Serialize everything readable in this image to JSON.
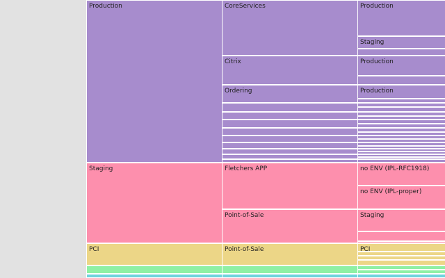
{
  "colors": {
    "purple": "#a78ccd",
    "pink": "#fd8fad",
    "yellow": "#ecd687",
    "green": "#8ff0a4",
    "cyan": "#6fd3dd",
    "separator": "#ffffff",
    "left_panel": "#e2e2e2"
  },
  "chart_data": {
    "type": "icicle",
    "title": "",
    "levels": 3,
    "nodes": [
      {
        "id": "production",
        "level": 0,
        "label": "Production",
        "value": 58.5,
        "color": "purple",
        "children": [
          {
            "id": "coreservices",
            "level": 1,
            "label": "CoreServices",
            "value": 20,
            "children": [
              {
                "id": "cs-production",
                "label": "Production",
                "value": 13
              },
              {
                "id": "cs-staging",
                "label": "Staging",
                "value": 4.5
              },
              {
                "id": "cs-r3",
                "label": "",
                "value": 2.5
              }
            ]
          },
          {
            "id": "citrix",
            "level": 1,
            "label": "Citrix",
            "value": 10.5,
            "children": [
              {
                "id": "cx-production",
                "label": "Production",
                "value": 7.25
              },
              {
                "id": "cx-r2",
                "label": "",
                "value": 3.25
              }
            ]
          },
          {
            "id": "ordering",
            "level": 1,
            "label": "Ordering",
            "value": 6.5,
            "children": [
              {
                "id": "or-production",
                "label": "Production",
                "value": 5
              },
              {
                "id": "or-r2",
                "label": "",
                "value": 1.5
              }
            ]
          },
          {
            "id": "p-r4",
            "level": 1,
            "label": "",
            "value": 3.25,
            "children": [
              {
                "id": "p-r4-a",
                "label": "",
                "value": 1.5
              },
              {
                "id": "p-r4-b",
                "label": "",
                "value": 1.75
              }
            ]
          },
          {
            "id": "p-r5",
            "level": 1,
            "label": "",
            "value": 2.75,
            "children": [
              {
                "id": "p-r5-a",
                "label": "",
                "value": 1.5
              },
              {
                "id": "p-r5-b",
                "label": "",
                "value": 1.25
              }
            ]
          },
          {
            "id": "p-r6",
            "level": 1,
            "label": "",
            "value": 3,
            "children": [
              {
                "id": "p-r6-a",
                "label": "",
                "value": 1.5
              },
              {
                "id": "p-r6-b",
                "label": "",
                "value": 1.5
              }
            ]
          },
          {
            "id": "p-r7",
            "level": 1,
            "label": "",
            "value": 2.75,
            "children": [
              {
                "id": "p-r7-a",
                "label": "",
                "value": 1.5
              },
              {
                "id": "p-r7-b",
                "label": "",
                "value": 1.25
              }
            ]
          },
          {
            "id": "p-r8",
            "level": 1,
            "label": "",
            "value": 2.5,
            "children": [
              {
                "id": "p-r8-a",
                "label": "",
                "value": 1.25
              },
              {
                "id": "p-r8-b",
                "label": "",
                "value": 1.25
              }
            ]
          },
          {
            "id": "p-r9",
            "level": 1,
            "label": "",
            "value": 2.25,
            "children": [
              {
                "id": "p-r9-a",
                "label": "",
                "value": 1.25
              },
              {
                "id": "p-r9-b",
                "label": "",
                "value": 1
              }
            ]
          },
          {
            "id": "p-r10",
            "level": 1,
            "label": "",
            "value": 2,
            "children": [
              {
                "id": "p-r10-a",
                "label": "",
                "value": 1
              },
              {
                "id": "p-r10-b",
                "label": "",
                "value": 1
              }
            ]
          },
          {
            "id": "p-r11",
            "level": 1,
            "label": "",
            "value": 1.75,
            "children": [
              {
                "id": "p-r11-a",
                "label": "",
                "value": 1
              },
              {
                "id": "p-r11-b",
                "label": "",
                "value": 0.75
              }
            ]
          },
          {
            "id": "p-r12",
            "level": 1,
            "label": "",
            "value": 1.25,
            "children": [
              {
                "id": "p-r12-a",
                "label": "",
                "value": 1.25
              }
            ]
          }
        ]
      },
      {
        "id": "staging",
        "level": 0,
        "label": "Staging",
        "value": 29,
        "color": "pink",
        "children": [
          {
            "id": "fletchers",
            "level": 1,
            "label": "Fletchers APP",
            "value": 16.75,
            "children": [
              {
                "id": "fl-noenv-rfc",
                "label": "no ENV (IPL-RFC1918)",
                "value": 8.25
              },
              {
                "id": "fl-noenv-proper",
                "label": "no ENV (IPL-proper)",
                "value": 8.5
              }
            ]
          },
          {
            "id": "pos-staging",
            "level": 1,
            "label": "Point-of-Sale",
            "value": 12.25,
            "children": [
              {
                "id": "pos-st-staging",
                "label": "Staging",
                "value": 8
              },
              {
                "id": "pos-st-r2",
                "label": "",
                "value": 3.5
              },
              {
                "id": "pos-st-r3",
                "label": "",
                "value": 0.75
              }
            ]
          }
        ]
      },
      {
        "id": "pci",
        "level": 0,
        "label": "PCI",
        "value": 8,
        "color": "yellow",
        "children": [
          {
            "id": "pos-pci",
            "level": 1,
            "label": "Point-of-Sale",
            "value": 8,
            "children": [
              {
                "id": "pci-pci",
                "label": "PCI",
                "value": 3
              },
              {
                "id": "pci-r2",
                "label": "",
                "value": 1.5
              },
              {
                "id": "pci-r3",
                "label": "",
                "value": 1.5
              },
              {
                "id": "pci-r4",
                "label": "",
                "value": 2
              }
            ]
          }
        ]
      },
      {
        "id": "green-group",
        "level": 0,
        "label": "",
        "value": 3,
        "color": "green",
        "children": [
          {
            "id": "green-l1",
            "level": 1,
            "label": "",
            "value": 3,
            "children": [
              {
                "id": "green-a",
                "label": "",
                "value": 1.5
              },
              {
                "id": "green-b",
                "label": "",
                "value": 1.5
              }
            ]
          }
        ]
      },
      {
        "id": "cyan-group",
        "level": 0,
        "label": "",
        "value": 1.5,
        "color": "cyan",
        "children": [
          {
            "id": "cyan-l1",
            "level": 1,
            "label": "",
            "value": 1.5,
            "children": [
              {
                "id": "cyan-a",
                "label": "",
                "value": 1.5
              }
            ]
          }
        ]
      }
    ]
  }
}
